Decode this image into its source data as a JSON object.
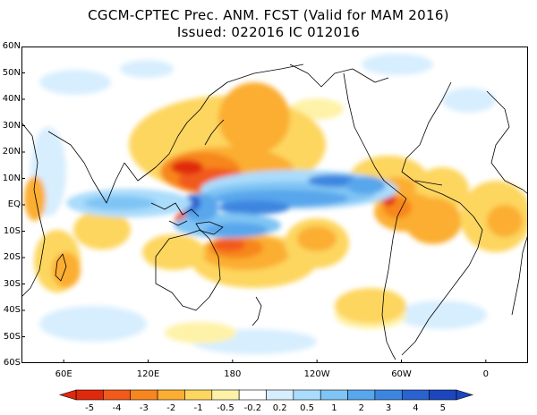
{
  "title": {
    "line1": "CGCM-CPTEC Prec. ANM. FCST  (Valid for MAM 2016)",
    "line2": "Issued:  022016 IC 012016"
  },
  "map": {
    "type": "precipitation anomaly forecast",
    "lon_range": [
      30,
      390
    ],
    "lat_range": [
      -60,
      60
    ],
    "lat_labels": [
      "60N",
      "50N",
      "40N",
      "30N",
      "20N",
      "10N",
      "EQ",
      "10S",
      "20S",
      "30S",
      "40S",
      "50S",
      "60S"
    ],
    "lat_values": [
      60,
      50,
      40,
      30,
      20,
      10,
      0,
      -10,
      -20,
      -30,
      -40,
      -50,
      -60
    ],
    "lon_labels": [
      "60E",
      "120E",
      "180",
      "120W",
      "60W",
      "0"
    ],
    "lon_values": [
      60,
      120,
      180,
      240,
      300,
      360
    ]
  },
  "colorbar": {
    "labels": [
      "-5",
      "-4",
      "-3",
      "-2",
      "-1",
      "-0.5",
      "-0.2",
      "0.2",
      "0.5",
      "1",
      "2",
      "3",
      "4",
      "5"
    ],
    "colors": [
      "#e0290c",
      "#f25a1b",
      "#f7861f",
      "#fbae31",
      "#fdd65f",
      "#fef2a8",
      "#ffffff",
      "#d7eefe",
      "#aadcfb",
      "#7fc4f4",
      "#58a6ec",
      "#3d86e0",
      "#2a63cf",
      "#1c46bd"
    ]
  }
}
